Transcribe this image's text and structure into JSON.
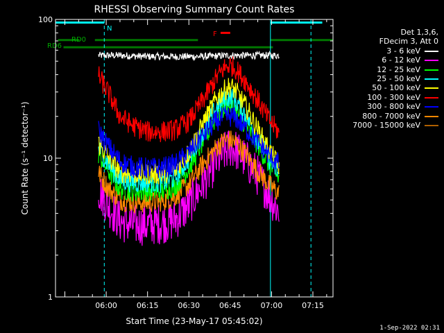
{
  "footer_timestamp": "1-Sep-2022 02:31",
  "legend": {
    "header_lines": [
      "Det 1,3,6,",
      "FDecim 3, Att 0"
    ]
  },
  "chart_data": {
    "type": "line",
    "title": "RHESSI Observing Summary Count Rates",
    "xlabel": "Start Time (23-May-17 05:45:02)",
    "ylabel": "Count Rate (s⁻¹ detector⁻¹)",
    "y_scale": "log",
    "xlim_minutes_after_0545": [
      -3.4,
      97.3
    ],
    "ylim": [
      1,
      100
    ],
    "x_tick_labels": [
      "06:00",
      "06:15",
      "06:30",
      "06:45",
      "07:00",
      "07:15"
    ],
    "x_tick_minutes": [
      15,
      30,
      45,
      60,
      75,
      90
    ],
    "y_tick_labels": [
      "1",
      "10",
      "100"
    ],
    "y_tick_values": [
      1,
      10,
      100
    ],
    "grid": false,
    "legend_position": "right",
    "data_window_minutes": [
      12.2,
      77.8
    ],
    "series": [
      {
        "name": "3 - 6 keV",
        "color": "#ffffff",
        "x": [
          12,
          20,
          30,
          40,
          50,
          60,
          70,
          78
        ],
        "y": [
          55,
          55,
          54,
          54,
          54,
          55,
          55,
          55
        ]
      },
      {
        "name": "6 - 12 keV",
        "color": "#ff00ff",
        "x": [
          12,
          16,
          20,
          25,
          30,
          35,
          40,
          45,
          50,
          55,
          58,
          60,
          62,
          66,
          70,
          74,
          78
        ],
        "y": [
          6.0,
          4.5,
          3.5,
          3.3,
          3.3,
          3.4,
          3.6,
          4.6,
          6.5,
          9.5,
          11.0,
          12.0,
          11.5,
          9.5,
          7.5,
          5.5,
          4.0
        ]
      },
      {
        "name": "12 - 25 keV",
        "color": "#00ff00",
        "x": [
          12,
          16,
          20,
          25,
          30,
          35,
          40,
          45,
          50,
          55,
          58,
          60,
          62,
          66,
          70,
          74,
          78
        ],
        "y": [
          11.0,
          8.0,
          6.0,
          5.8,
          5.8,
          5.8,
          6.3,
          8.5,
          13.0,
          20.0,
          23.5,
          24.0,
          22.0,
          17.0,
          12.5,
          9.0,
          7.0
        ]
      },
      {
        "name": "25 - 50 keV",
        "color": "#00ffff",
        "x": [
          12,
          16,
          20,
          25,
          30,
          35,
          40,
          45,
          50,
          55,
          58,
          60,
          62,
          66,
          70,
          74,
          78
        ],
        "y": [
          12.0,
          9.0,
          7.0,
          6.7,
          6.7,
          6.7,
          7.2,
          10.0,
          15.5,
          23.0,
          27.0,
          28.0,
          26.0,
          20.0,
          14.0,
          10.0,
          7.5
        ]
      },
      {
        "name": "50 - 100 keV",
        "color": "#ffff00",
        "x": [
          12,
          16,
          20,
          25,
          30,
          35,
          40,
          45,
          50,
          55,
          58,
          60,
          62,
          66,
          70,
          74,
          78
        ],
        "y": [
          13.0,
          10.0,
          8.0,
          7.7,
          7.7,
          7.7,
          8.2,
          11.0,
          17.5,
          27.0,
          31.0,
          33.0,
          30.5,
          23.0,
          16.0,
          11.5,
          8.5
        ]
      },
      {
        "name": "100 - 300 keV",
        "color": "#ff0000",
        "x": [
          12,
          16,
          20,
          25,
          30,
          35,
          40,
          45,
          50,
          55,
          58,
          60,
          62,
          66,
          70,
          74,
          78
        ],
        "y": [
          40.0,
          29.0,
          20.0,
          17.0,
          15.5,
          15.5,
          16.0,
          18.5,
          26.0,
          38.0,
          45.0,
          47.0,
          44.0,
          35.0,
          26.0,
          19.0,
          15.0
        ]
      },
      {
        "name": "300 - 800 keV",
        "color": "#0000ff",
        "x": [
          12,
          16,
          20,
          25,
          30,
          35,
          40,
          45,
          50,
          55,
          58,
          60,
          62,
          66,
          70,
          74,
          78
        ],
        "y": [
          16.0,
          12.0,
          9.5,
          8.6,
          8.5,
          8.5,
          9.0,
          11.0,
          14.5,
          18.5,
          20.0,
          20.0,
          19.5,
          16.0,
          13.0,
          10.5,
          9.0
        ]
      },
      {
        "name": "800 - 7000 keV",
        "color": "#ff8800",
        "x": [
          12,
          16,
          20,
          25,
          30,
          35,
          40,
          45,
          50,
          55,
          58,
          60,
          62,
          66,
          70,
          74,
          78
        ],
        "y": [
          8.0,
          6.0,
          5.0,
          4.8,
          4.8,
          4.9,
          5.3,
          6.5,
          9.0,
          12.0,
          13.5,
          13.5,
          13.0,
          10.5,
          8.0,
          6.5,
          5.5
        ]
      },
      {
        "name": "7000 - 15000 keV",
        "color": "#b06000",
        "x": [],
        "y": []
      }
    ],
    "annotations": [
      {
        "label": "N",
        "color": "#00ffff",
        "kind": "night",
        "intervals_minutes": [
          [
            -3.4,
            14.3
          ],
          [
            74.6,
            93.4
          ]
        ],
        "level": 95
      },
      {
        "label": "RD0",
        "color": "#007700",
        "kind": "bar",
        "intervals_minutes": [
          [
            -2.5,
            5.3
          ],
          [
            10.9,
            48.3
          ],
          [
            74.6,
            97.3
          ]
        ],
        "level": 71
      },
      {
        "label": "RD6",
        "color": "#007700",
        "kind": "bar",
        "intervals_minutes": [
          [
            -0.5,
            75.5
          ]
        ],
        "level": 63
      },
      {
        "label": "F",
        "color": "#ff0000",
        "kind": "bar",
        "intervals_minutes": [
          [
            56.5,
            60.0
          ]
        ],
        "level": 80
      }
    ],
    "night_boundaries_minutes": [
      14.3,
      74.6,
      89.3
    ]
  }
}
